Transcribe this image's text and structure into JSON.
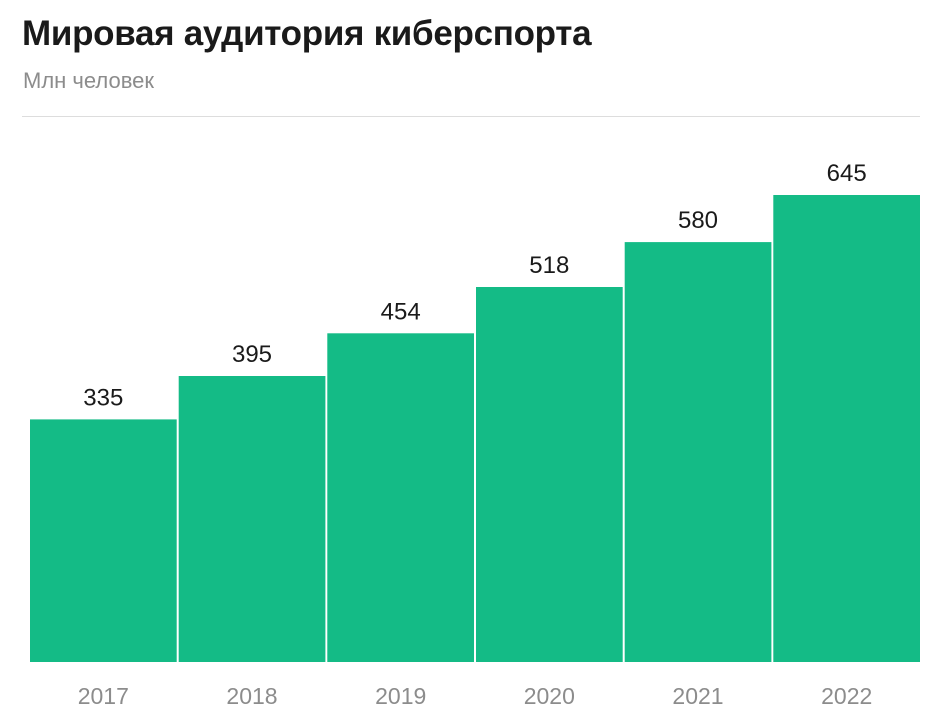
{
  "header": {
    "title": "Мировая аудитория киберспорта",
    "subtitle": "Млн человек"
  },
  "chart_data": {
    "type": "bar",
    "title": "Мировая аудитория киберспорта",
    "ylabel": "Млн человек",
    "xlabel": "",
    "categories": [
      "2017",
      "2018",
      "2019",
      "2020",
      "2021",
      "2022"
    ],
    "values": [
      335,
      395,
      454,
      518,
      580,
      645
    ],
    "ylim": [
      0,
      645
    ],
    "grid": false,
    "legend": "none",
    "bar_color": "#14bb86"
  }
}
